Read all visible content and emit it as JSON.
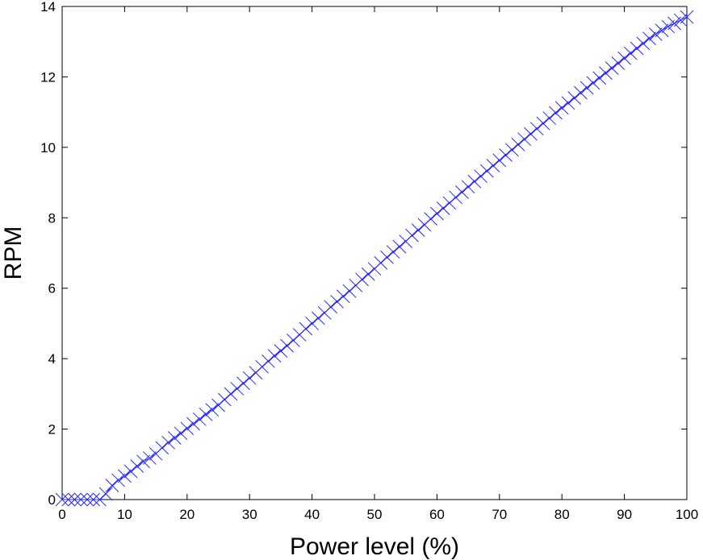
{
  "chart_data": {
    "type": "line",
    "title": "",
    "xlabel": "Power level (%)",
    "ylabel": "RPM",
    "xlim": [
      0,
      100
    ],
    "ylim": [
      0,
      14
    ],
    "x_ticks": [
      0,
      10,
      20,
      30,
      40,
      50,
      60,
      70,
      80,
      90,
      100
    ],
    "y_ticks": [
      0,
      2,
      4,
      6,
      8,
      10,
      12,
      14
    ],
    "grid": false,
    "legend": "none",
    "marker": "x",
    "color": "#2a2aff",
    "series": [
      {
        "x_start": 0,
        "x_end": 100,
        "x_step": 1,
        "values": [
          0,
          0,
          0,
          0,
          0,
          0,
          0,
          0.16,
          0.4,
          0.55,
          0.67,
          0.8,
          0.95,
          1.08,
          1.18,
          1.3,
          1.47,
          1.62,
          1.75,
          1.88,
          2.02,
          2.15,
          2.28,
          2.42,
          2.55,
          2.68,
          2.84,
          3.0,
          3.15,
          3.3,
          3.45,
          3.6,
          3.77,
          3.93,
          4.08,
          4.22,
          4.37,
          4.52,
          4.68,
          4.85,
          5.0,
          5.15,
          5.3,
          5.47,
          5.62,
          5.77,
          5.92,
          6.08,
          6.25,
          6.4,
          6.55,
          6.72,
          6.88,
          7.03,
          7.18,
          7.33,
          7.5,
          7.65,
          7.8,
          7.97,
          8.12,
          8.27,
          8.42,
          8.58,
          8.73,
          8.88,
          9.03,
          9.18,
          9.33,
          9.48,
          9.63,
          9.78,
          9.93,
          10.08,
          10.23,
          10.38,
          10.53,
          10.68,
          10.83,
          10.98,
          11.12,
          11.26,
          11.4,
          11.55,
          11.69,
          11.83,
          11.97,
          12.11,
          12.25,
          12.39,
          12.53,
          12.67,
          12.81,
          12.95,
          13.09,
          13.21,
          13.32,
          13.43,
          13.52,
          13.61,
          13.7
        ]
      }
    ]
  }
}
